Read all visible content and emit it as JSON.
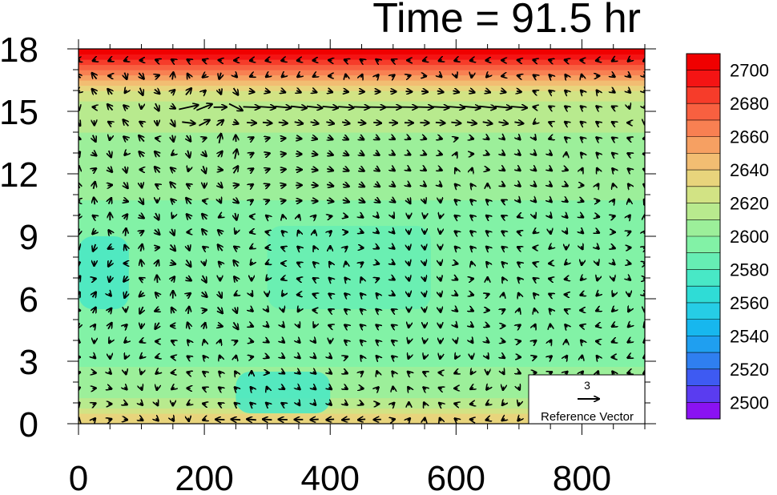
{
  "chart_data": {
    "type": "heatmap",
    "title": "Time = 91.5 hr",
    "xlabel": "",
    "ylabel": "",
    "xlim": [
      0,
      900
    ],
    "ylim": [
      0,
      18
    ],
    "x_ticks": [
      "0",
      "200",
      "400",
      "600",
      "800"
    ],
    "x_tick_values": [
      0,
      200,
      400,
      600,
      800
    ],
    "y_ticks": [
      "0",
      "3",
      "6",
      "9",
      "12",
      "15",
      "18"
    ],
    "y_tick_values": [
      0,
      3,
      6,
      9,
      12,
      15,
      18
    ],
    "colorbar": {
      "min": 2490,
      "max": 2710,
      "step": 10,
      "labels": [
        "2500",
        "2520",
        "2540",
        "2560",
        "2580",
        "2600",
        "2620",
        "2640",
        "2660",
        "2680",
        "2700"
      ],
      "label_values": [
        2500,
        2520,
        2540,
        2560,
        2580,
        2600,
        2620,
        2640,
        2660,
        2680,
        2700
      ],
      "colors": [
        "#8a12f2",
        "#5a3cf0",
        "#3e5af2",
        "#2f7ff0",
        "#1f9ff0",
        "#17b7ee",
        "#26cde6",
        "#2fdcd6",
        "#48e8c6",
        "#66eeb4",
        "#82f2a6",
        "#9cef9a",
        "#b8ea8e",
        "#d2e384",
        "#e8d47c",
        "#f2bd72",
        "#f6a062",
        "#f88052",
        "#f86040",
        "#f63c2a",
        "#f41414",
        "#f00000"
      ]
    },
    "field_levels": [
      {
        "y": 0.3,
        "value": 2635
      },
      {
        "y": 1.0,
        "value": 2612
      },
      {
        "y": 3.0,
        "value": 2598
      },
      {
        "y": 6.0,
        "value": 2592
      },
      {
        "y": 9.0,
        "value": 2593
      },
      {
        "y": 12.0,
        "value": 2605
      },
      {
        "y": 14.0,
        "value": 2610
      },
      {
        "y": 15.5,
        "value": 2618
      },
      {
        "y": 16.3,
        "value": 2640
      },
      {
        "y": 16.9,
        "value": 2665
      },
      {
        "y": 17.4,
        "value": 2690
      },
      {
        "y": 18.0,
        "value": 2710
      }
    ],
    "cold_pools": [
      {
        "x": [
          0,
          80
        ],
        "y": [
          5.5,
          9.0
        ],
        "value": 2572
      },
      {
        "x": [
          250,
          400
        ],
        "y": [
          0.5,
          2.5
        ],
        "value": 2578
      },
      {
        "x": [
          300,
          560
        ],
        "y": [
          5.5,
          9.5
        ],
        "value": 2585
      }
    ],
    "vector_grid": {
      "x_start": 0,
      "x_step": 25,
      "x_count": 37,
      "y_start": 0.2,
      "y_step": 0.75,
      "y_count": 24
    },
    "reference_vector": {
      "magnitude": 3,
      "label": "Reference Vector",
      "value_label": "3"
    }
  }
}
